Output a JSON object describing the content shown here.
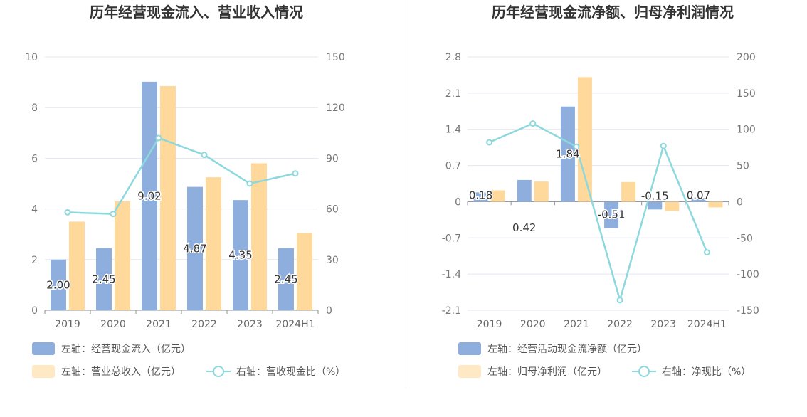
{
  "chart_data": [
    {
      "type": "bar",
      "title": "历年经营现金流入、营业收入情况",
      "categories": [
        "2019",
        "2020",
        "2021",
        "2022",
        "2023",
        "2024H1"
      ],
      "y_left": {
        "range": [
          0,
          10
        ],
        "ticks": [
          "0",
          "2",
          "4",
          "6",
          "8",
          "10"
        ]
      },
      "y_right": {
        "range": [
          0,
          150
        ],
        "ticks": [
          "0",
          "30",
          "60",
          "90",
          "120",
          "150"
        ]
      },
      "series": [
        {
          "name": "左轴：经营现金流入（亿元）",
          "kind": "bar",
          "axis": "left",
          "color": "#8eaedd",
          "values": [
            2.0,
            2.45,
            9.02,
            4.87,
            4.35,
            2.45
          ],
          "labels": [
            "2.00",
            "2.45",
            "9.02",
            "4.87",
            "4.35",
            "2.45"
          ]
        },
        {
          "name": "左轴：营业总收入（亿元）",
          "kind": "bar",
          "axis": "left",
          "color": "#ffd99b",
          "values": [
            3.5,
            4.3,
            8.85,
            5.25,
            5.8,
            3.05
          ]
        },
        {
          "name": "右轴：营收现金比（%）",
          "kind": "line",
          "axis": "right",
          "color": "#8dd8dd",
          "values": [
            58,
            57,
            102,
            92,
            75,
            81
          ]
        }
      ],
      "grid": true,
      "legend_position": "bottom"
    },
    {
      "type": "bar",
      "title": "历年经营现金流净额、归母净利润情况",
      "categories": [
        "2019",
        "2020",
        "2021",
        "2022",
        "2023",
        "2024H1"
      ],
      "y_left": {
        "range": [
          -2.1,
          2.8
        ],
        "ticks": [
          "-2.1",
          "-1.4",
          "-0.7",
          "0",
          "0.7",
          "1.4",
          "2.1",
          "2.8"
        ]
      },
      "y_right": {
        "range": [
          -150,
          200
        ],
        "ticks": [
          "-150",
          "-100",
          "-50",
          "0",
          "50",
          "100",
          "150",
          "200"
        ]
      },
      "series": [
        {
          "name": "左轴：经营活动现金流净额（亿元）",
          "kind": "bar",
          "axis": "left",
          "color": "#8eaedd",
          "values": [
            0.18,
            0.42,
            1.84,
            -0.51,
            -0.15,
            0.07
          ],
          "labels": [
            "0.18",
            "0.42",
            "1.84",
            "-0.51",
            "-0.15",
            "0.07"
          ]
        },
        {
          "name": "左轴：归母净利润（亿元）",
          "kind": "bar",
          "axis": "left",
          "color": "#ffd99b",
          "values": [
            0.22,
            0.39,
            2.41,
            0.38,
            -0.18,
            -0.11
          ]
        },
        {
          "name": "右轴：净现比（%）",
          "kind": "line",
          "axis": "right",
          "color": "#8dd8dd",
          "values": [
            82,
            108,
            76,
            -136,
            77,
            -70
          ]
        }
      ],
      "grid": true,
      "legend_position": "bottom"
    }
  ]
}
